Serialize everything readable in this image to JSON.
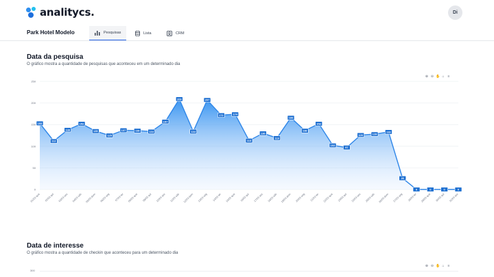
{
  "app": {
    "logo_text": "analitycs.",
    "avatar_initials": "Di"
  },
  "nav": {
    "hotel_name": "Park Hotel Modelo",
    "tabs": [
      {
        "label": "Pesquisas",
        "icon": "bar-chart-icon",
        "active": true
      },
      {
        "label": "Lista",
        "icon": "database-icon",
        "active": false
      },
      {
        "label": "CRM",
        "icon": "contact-card-icon",
        "active": false
      }
    ]
  },
  "section1": {
    "title": "Data da pesquisa",
    "description": "O gráfico mostra a quantidade de pesquisas que aconteceu em um determinado dia"
  },
  "section2": {
    "title": "Data de interesse",
    "description": "O gráfico mostra a quantidade de checkin que aconteceu para um determinado dia",
    "first_tick": "300"
  },
  "chart_toolbar": [
    "zoom-in-icon",
    "zoom-out-icon",
    "pan-icon",
    "home-icon",
    "menu-icon"
  ],
  "colors": {
    "accent": "#2f8ff0",
    "line": "#2e86e8",
    "label_bg": "#1d6fd1"
  },
  "chart_data": {
    "type": "area",
    "ylim": [
      0,
      250
    ],
    "yticks": [
      0,
      50,
      100,
      150,
      200,
      250
    ],
    "x": [
      "01/03 qua",
      "02/03 qui",
      "03/03 sex",
      "04/03 sáb",
      "05/03 dom",
      "06/03 seg",
      "07/03 ter",
      "08/03 qua",
      "09/03 qui",
      "10/03 sex",
      "11/03 sáb",
      "12/03 dom",
      "13/03 seg",
      "14/03 ter",
      "15/03 qua",
      "16/03 qui",
      "17/03 sex",
      "18/03 sáb",
      "19/03 dom",
      "20/03 seg",
      "21/03 ter",
      "22/03 qua",
      "23/03 qui",
      "24/03 sex",
      "25/03 sáb",
      "26/03 dom",
      "27/03 seg",
      "28/03 ter",
      "29/03 qua",
      "30/03 qui",
      "31/03 sex"
    ],
    "series": [
      {
        "values": [
          153,
          112,
          138,
          152,
          135,
          125,
          137,
          136,
          134,
          157,
          209,
          134,
          207,
          172,
          174,
          113,
          130,
          119,
          166,
          136,
          152,
          102,
          97,
          126,
          128,
          133,
          26,
          0,
          0,
          0,
          0
        ]
      }
    ]
  }
}
